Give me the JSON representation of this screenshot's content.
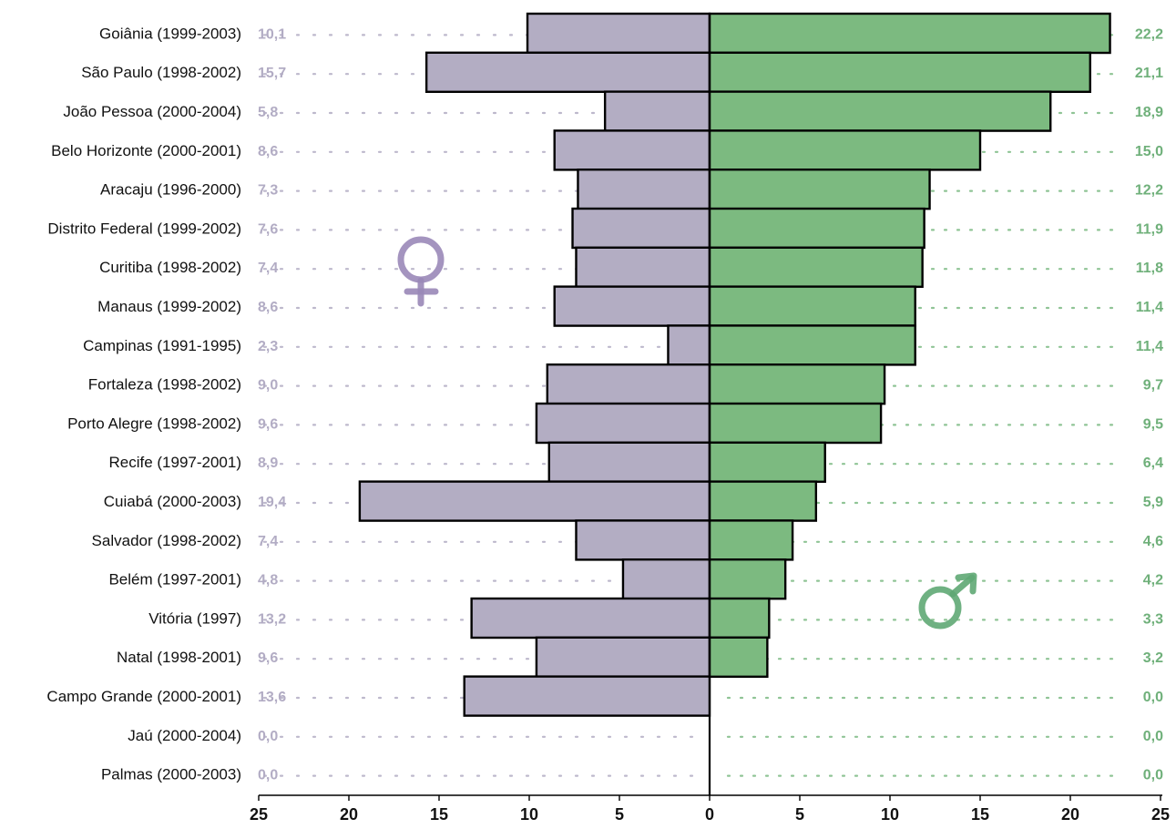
{
  "chart_data": {
    "type": "bar",
    "orientation": "horizontal-butterfly",
    "categories": [
      "Goiânia (1999-2003)",
      "São Paulo (1998-2002)",
      "João Pessoa (2000-2004)",
      "Belo Horizonte (2000-2001)",
      "Aracaju (1996-2000)",
      "Distrito Federal (1999-2002)",
      "Curitiba (1998-2002)",
      "Manaus (1999-2002)",
      "Campinas (1991-1995)",
      "Fortaleza (1998-2002)",
      "Porto Alegre (1998-2002)",
      "Recife (1997-2001)",
      "Cuiabá (2000-2003)",
      "Salvador (1998-2002)",
      "Belém (1997-2001)",
      "Vitória (1997)",
      "Natal (1998-2001)",
      "Campo Grande (2000-2001)",
      "Jaú (2000-2004)",
      "Palmas (2000-2003)"
    ],
    "series": [
      {
        "symbol": "♀",
        "side": "left",
        "color": "#b3adc3",
        "label_color": "#b2acc4",
        "values": [
          10.1,
          15.7,
          5.8,
          8.6,
          7.3,
          7.6,
          7.4,
          8.6,
          2.3,
          9.0,
          9.6,
          8.9,
          19.4,
          7.4,
          4.8,
          13.2,
          9.6,
          13.6,
          0.0,
          0.0
        ],
        "labels": [
          "10,1",
          "15,7",
          "5,8",
          "8,6",
          "7,3",
          "7,6",
          "7,4",
          "8,6",
          "2,3",
          "9,0",
          "9,6",
          "8,9",
          "19,4",
          "7,4",
          "4,8",
          "13,2",
          "9,6",
          "13,6",
          "0,0",
          "0,0"
        ]
      },
      {
        "symbol": "♂",
        "side": "right",
        "color": "#7cba80",
        "label_color": "#6fb07a",
        "values": [
          22.2,
          21.1,
          18.9,
          15.0,
          12.2,
          11.9,
          11.8,
          11.4,
          11.4,
          9.7,
          9.5,
          6.4,
          5.9,
          4.6,
          4.2,
          3.3,
          3.2,
          0.0,
          0.0,
          0.0
        ],
        "labels": [
          "22,2",
          "21,1",
          "18,9",
          "15,0",
          "12,2",
          "11,9",
          "11,8",
          "11,4",
          "11,4",
          "9,7",
          "9,5",
          "6,4",
          "5,9",
          "4,6",
          "4,2",
          "3,3",
          "3,2",
          "0,0",
          "0,0",
          "0,0"
        ]
      }
    ],
    "xlim": [
      -25,
      25
    ],
    "ticks": [
      "25",
      "20",
      "15",
      "10",
      "5",
      "0",
      "5",
      "10",
      "15",
      "20",
      "25"
    ],
    "grid": false,
    "legend": "symbols (♀ left, ♂ right)"
  }
}
